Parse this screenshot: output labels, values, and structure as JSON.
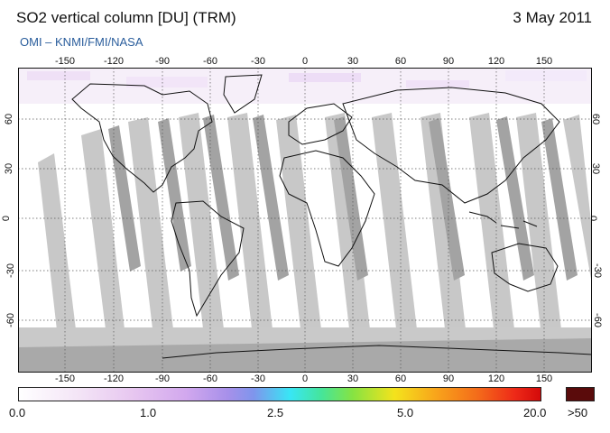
{
  "title": "SO2 vertical column [DU] (TRM)",
  "date": "3 May 2011",
  "credit": "OMI  –  KNMI/FMI/NASA",
  "longitude_labels": [
    "-150",
    "-120",
    "-90",
    "-60",
    "-30",
    "0",
    "30",
    "60",
    "90",
    "120",
    "150"
  ],
  "latitude_labels": [
    "60",
    "30",
    "0",
    "-30",
    "-60"
  ],
  "colorbar": {
    "labels": [
      "0.0",
      "1.0",
      "2.5",
      "5.0",
      "20.0"
    ],
    "overflow_label": ">50",
    "overflow_color": "#5a0b0b"
  },
  "colors": {
    "orbit_gap": "#c8c8c8",
    "orbit_dark": "#a3a3a3",
    "antarctic": "#a9a9a9",
    "background": "#ffffff"
  }
}
